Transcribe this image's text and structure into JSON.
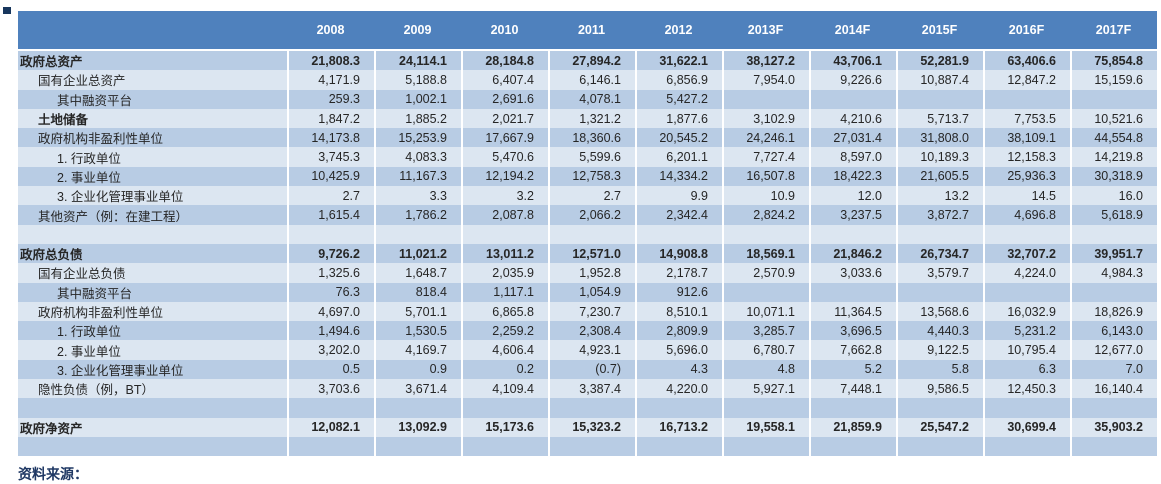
{
  "colors": {
    "header_bg": "#4f81bd",
    "band_medium": "#b8cce4",
    "band_light": "#dce6f1",
    "text": "#262626",
    "header_text": "#ffffff",
    "corner_mark": "#17365d",
    "note_text": "#1f3864"
  },
  "source_note": "资料来源：",
  "table": {
    "columns": [
      "2008",
      "2009",
      "2010",
      "2011",
      "2012",
      "2013F",
      "2014F",
      "2015F",
      "2016F",
      "2017F"
    ],
    "rows": [
      {
        "label": "政府总资产",
        "indent": 0,
        "label_bold": true,
        "values_bold": true,
        "band": "medium",
        "values": [
          "21,808.3",
          "24,114.1",
          "28,184.8",
          "27,894.2",
          "31,622.1",
          "38,127.2",
          "43,706.1",
          "52,281.9",
          "63,406.6",
          "75,854.8"
        ]
      },
      {
        "label": "国有企业总资产",
        "indent": 1,
        "label_bold": false,
        "values_bold": false,
        "band": "light",
        "values": [
          "4,171.9",
          "5,188.8",
          "6,407.4",
          "6,146.1",
          "6,856.9",
          "7,954.0",
          "9,226.6",
          "10,887.4",
          "12,847.2",
          "15,159.6"
        ]
      },
      {
        "label": "其中融资平台",
        "indent": 2,
        "label_bold": false,
        "values_bold": false,
        "band": "medium",
        "values": [
          "259.3",
          "1,002.1",
          "2,691.6",
          "4,078.1",
          "5,427.2",
          "",
          "",
          "",
          "",
          ""
        ]
      },
      {
        "label": "土地储备",
        "indent": 1,
        "label_bold": true,
        "values_bold": false,
        "band": "light",
        "values": [
          "1,847.2",
          "1,885.2",
          "2,021.7",
          "1,321.2",
          "1,877.6",
          "3,102.9",
          "4,210.6",
          "5,713.7",
          "7,753.5",
          "10,521.6"
        ]
      },
      {
        "label": "政府机构非盈利性单位",
        "indent": 1,
        "label_bold": false,
        "values_bold": false,
        "band": "medium",
        "values": [
          "14,173.8",
          "15,253.9",
          "17,667.9",
          "18,360.6",
          "20,545.2",
          "24,246.1",
          "27,031.4",
          "31,808.0",
          "38,109.1",
          "44,554.8"
        ]
      },
      {
        "label": "1. 行政单位",
        "indent": 2,
        "label_bold": false,
        "values_bold": false,
        "band": "light",
        "values": [
          "3,745.3",
          "4,083.3",
          "5,470.6",
          "5,599.6",
          "6,201.1",
          "7,727.4",
          "8,597.0",
          "10,189.3",
          "12,158.3",
          "14,219.8"
        ]
      },
      {
        "label": "2. 事业单位",
        "indent": 2,
        "label_bold": false,
        "values_bold": false,
        "band": "medium",
        "values": [
          "10,425.9",
          "11,167.3",
          "12,194.2",
          "12,758.3",
          "14,334.2",
          "16,507.8",
          "18,422.3",
          "21,605.5",
          "25,936.3",
          "30,318.9"
        ]
      },
      {
        "label": "3. 企业化管理事业单位",
        "indent": 2,
        "label_bold": false,
        "values_bold": false,
        "band": "light",
        "values": [
          "2.7",
          "3.3",
          "3.2",
          "2.7",
          "9.9",
          "10.9",
          "12.0",
          "13.2",
          "14.5",
          "16.0"
        ]
      },
      {
        "label": "其他资产（例：在建工程）",
        "indent": 1,
        "label_bold": false,
        "values_bold": false,
        "band": "medium",
        "values": [
          "1,615.4",
          "1,786.2",
          "2,087.8",
          "2,066.2",
          "2,342.4",
          "2,824.2",
          "3,237.5",
          "3,872.7",
          "4,696.8",
          "5,618.9"
        ]
      },
      {
        "label": "",
        "indent": 0,
        "label_bold": false,
        "values_bold": false,
        "band": "light",
        "values": [
          "",
          "",
          "",
          "",
          "",
          "",
          "",
          "",
          "",
          ""
        ]
      },
      {
        "label": "政府总负债",
        "indent": 0,
        "label_bold": true,
        "values_bold": true,
        "band": "medium",
        "values": [
          "9,726.2",
          "11,021.2",
          "13,011.2",
          "12,571.0",
          "14,908.8",
          "18,569.1",
          "21,846.2",
          "26,734.7",
          "32,707.2",
          "39,951.7"
        ]
      },
      {
        "label": "国有企业总负债",
        "indent": 1,
        "label_bold": false,
        "values_bold": false,
        "band": "light",
        "values": [
          "1,325.6",
          "1,648.7",
          "2,035.9",
          "1,952.8",
          "2,178.7",
          "2,570.9",
          "3,033.6",
          "3,579.7",
          "4,224.0",
          "4,984.3"
        ]
      },
      {
        "label": "其中融资平台",
        "indent": 2,
        "label_bold": false,
        "values_bold": false,
        "band": "medium",
        "values": [
          "76.3",
          "818.4",
          "1,117.1",
          "1,054.9",
          "912.6",
          "",
          "",
          "",
          "",
          ""
        ]
      },
      {
        "label": "政府机构非盈利性单位",
        "indent": 1,
        "label_bold": false,
        "values_bold": false,
        "band": "light",
        "values": [
          "4,697.0",
          "5,701.1",
          "6,865.8",
          "7,230.7",
          "8,510.1",
          "10,071.1",
          "11,364.5",
          "13,568.6",
          "16,032.9",
          "18,826.9"
        ]
      },
      {
        "label": "1. 行政单位",
        "indent": 2,
        "label_bold": false,
        "values_bold": false,
        "band": "medium",
        "values": [
          "1,494.6",
          "1,530.5",
          "2,259.2",
          "2,308.4",
          "2,809.9",
          "3,285.7",
          "3,696.5",
          "4,440.3",
          "5,231.2",
          "6,143.0"
        ]
      },
      {
        "label": "2. 事业单位",
        "indent": 2,
        "label_bold": false,
        "values_bold": false,
        "band": "light",
        "values": [
          "3,202.0",
          "4,169.7",
          "4,606.4",
          "4,923.1",
          "5,696.0",
          "6,780.7",
          "7,662.8",
          "9,122.5",
          "10,795.4",
          "12,677.0"
        ]
      },
      {
        "label": "3. 企业化管理事业单位",
        "indent": 2,
        "label_bold": false,
        "values_bold": false,
        "band": "medium",
        "values": [
          "0.5",
          "0.9",
          "0.2",
          "(0.7)",
          "4.3",
          "4.8",
          "5.2",
          "5.8",
          "6.3",
          "7.0"
        ]
      },
      {
        "label": "隐性负债（例，BT）",
        "indent": 1,
        "label_bold": false,
        "values_bold": false,
        "band": "light",
        "values": [
          "3,703.6",
          "3,671.4",
          "4,109.4",
          "3,387.4",
          "4,220.0",
          "5,927.1",
          "7,448.1",
          "9,586.5",
          "12,450.3",
          "16,140.4"
        ]
      },
      {
        "label": "",
        "indent": 0,
        "label_bold": false,
        "values_bold": false,
        "band": "medium",
        "values": [
          "",
          "",
          "",
          "",
          "",
          "",
          "",
          "",
          "",
          ""
        ]
      },
      {
        "label": "政府净资产",
        "indent": 0,
        "label_bold": true,
        "values_bold": true,
        "band": "light",
        "values": [
          "12,082.1",
          "13,092.9",
          "15,173.6",
          "15,323.2",
          "16,713.2",
          "19,558.1",
          "21,859.9",
          "25,547.2",
          "30,699.4",
          "35,903.2"
        ]
      },
      {
        "label": "",
        "indent": 0,
        "label_bold": false,
        "values_bold": false,
        "band": "medium",
        "values": [
          "",
          "",
          "",
          "",
          "",
          "",
          "",
          "",
          "",
          ""
        ]
      }
    ]
  }
}
